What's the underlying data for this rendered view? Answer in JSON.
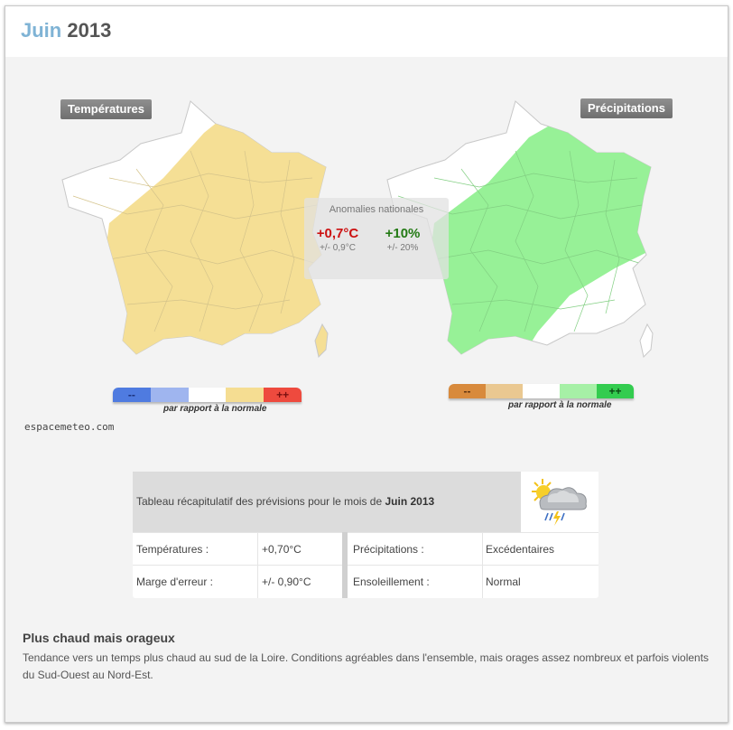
{
  "header": {
    "month": "Juin",
    "year": "2013"
  },
  "maps": {
    "temperature": {
      "tag": "Températures",
      "legend": [
        "--",
        "",
        "",
        "",
        "++"
      ],
      "legend_colors": [
        "#4f7be0",
        "#9fb5ef",
        "#ffffff",
        "#f5dd92",
        "#ee4a3e"
      ],
      "caption": "par rapport à la normale"
    },
    "precipitation": {
      "tag": "Précipitations",
      "legend": [
        "--",
        "",
        "",
        "",
        "++"
      ],
      "legend_colors": [
        "#d88a3c",
        "#eac891",
        "#ffffff",
        "#a6f0a6",
        "#33cc4f"
      ],
      "caption": "par rapport à la normale"
    }
  },
  "anomalies": {
    "label": "Anomalies nationales",
    "temperature": {
      "value": "+0,7°C",
      "error": "+/- 0,9°C",
      "color": "#cc1111"
    },
    "precipitation": {
      "value": "+10%",
      "error": "+/- 20%",
      "color": "#237a14"
    }
  },
  "source": "espacemeteo.com",
  "table": {
    "header_prefix": "Tableau récapitulatif des prévisions pour le mois de",
    "header_bold": "Juin 2013",
    "icon": "sun-cloud-storm-icon",
    "rows": [
      {
        "label1": "Températures :",
        "value1": "+0,70°C",
        "label2": "Précipitations :",
        "value2": "Excédentaires"
      },
      {
        "label1": "Marge d'erreur :",
        "value1": "+/- 0,90°C",
        "label2": "Ensoleillement :",
        "value2": "Normal"
      }
    ]
  },
  "summary": {
    "title": "Plus chaud mais orageux",
    "text": "Tendance vers un temps plus chaud au sud de la Loire. Conditions agréables dans l'ensemble, mais orages assez nombreux et parfois violents du Sud-Ouest au Nord-Est."
  },
  "colors": {
    "temp_fill": "#f5df95",
    "precip_fill": "#97f197",
    "title_month": "#7fb3d5"
  }
}
